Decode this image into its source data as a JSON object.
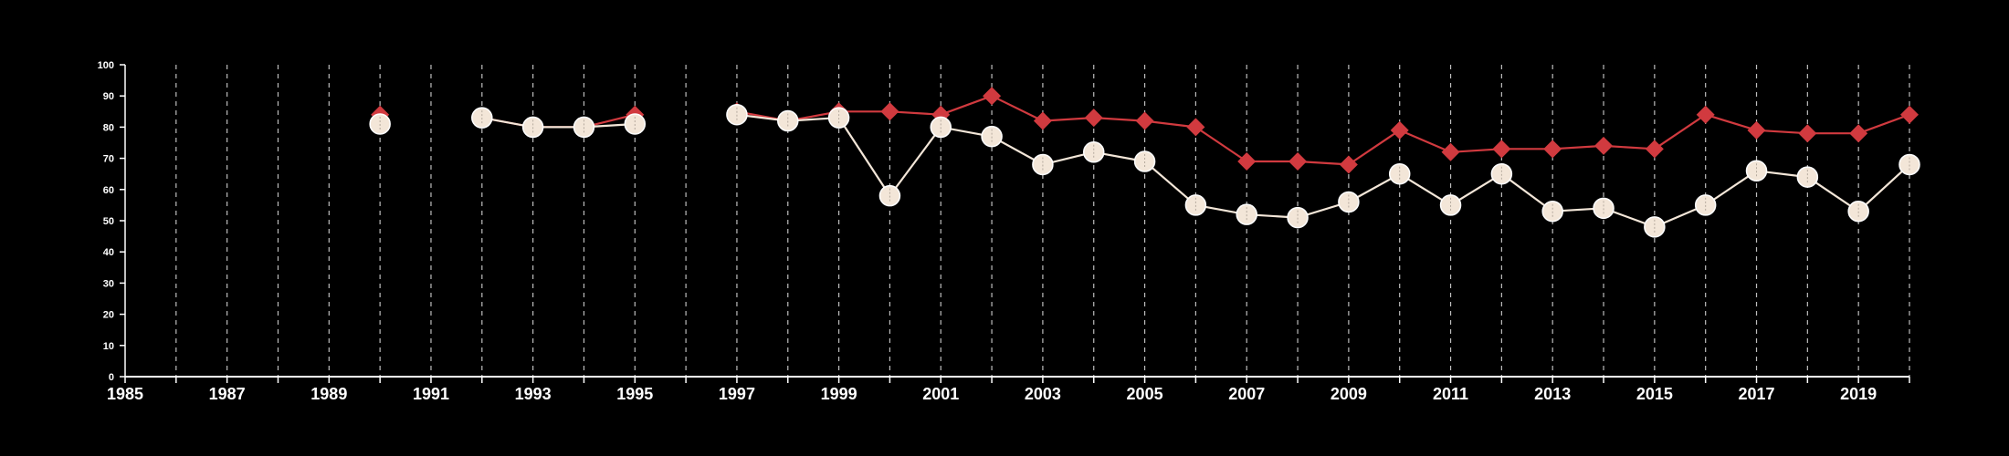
{
  "chart_data": {
    "type": "line",
    "title": "",
    "xlabel": "",
    "ylabel": "",
    "xlim": [
      1985,
      2020
    ],
    "ylim": [
      0,
      100
    ],
    "x_ticks": [
      "1985",
      "1987",
      "1989",
      "1991",
      "1993",
      "1995",
      "1997",
      "1999",
      "2001",
      "2003",
      "2005",
      "2007",
      "2009",
      "2011",
      "2013",
      "2015",
      "2017",
      "2019"
    ],
    "y_ticks": [
      "0",
      "10",
      "20",
      "30",
      "40",
      "50",
      "60",
      "70",
      "80",
      "90",
      "100"
    ],
    "grid": {
      "vertical": true,
      "horizontal": false,
      "style": "dashed"
    },
    "background": "#000000",
    "series": [
      {
        "color": "#d13a3f",
        "marker": "diamond",
        "points": [
          {
            "x": 1990,
            "y": 84
          },
          null,
          {
            "x": 1992,
            "y": 83
          },
          {
            "x": 1993,
            "y": 80
          },
          {
            "x": 1994,
            "y": 80
          },
          {
            "x": 1995,
            "y": 84
          },
          null,
          {
            "x": 1997,
            "y": 85
          },
          {
            "x": 1998,
            "y": 82
          },
          {
            "x": 1999,
            "y": 85
          },
          {
            "x": 2000,
            "y": 85
          },
          {
            "x": 2001,
            "y": 84
          },
          {
            "x": 2002,
            "y": 90
          },
          {
            "x": 2003,
            "y": 82
          },
          {
            "x": 2004,
            "y": 83
          },
          {
            "x": 2005,
            "y": 82
          },
          {
            "x": 2006,
            "y": 80
          },
          {
            "x": 2007,
            "y": 69
          },
          {
            "x": 2008,
            "y": 69
          },
          {
            "x": 2009,
            "y": 68
          },
          {
            "x": 2010,
            "y": 79
          },
          {
            "x": 2011,
            "y": 72
          },
          {
            "x": 2012,
            "y": 73
          },
          {
            "x": 2013,
            "y": 73
          },
          {
            "x": 2014,
            "y": 74
          },
          {
            "x": 2015,
            "y": 73
          },
          {
            "x": 2016,
            "y": 84
          },
          {
            "x": 2017,
            "y": 79
          },
          {
            "x": 2018,
            "y": 78
          },
          {
            "x": 2019,
            "y": 78
          },
          {
            "x": 2020,
            "y": 84
          }
        ]
      },
      {
        "color": "#f3e6d8",
        "marker": "circle",
        "points": [
          {
            "x": 1990,
            "y": 81
          },
          null,
          {
            "x": 1992,
            "y": 83
          },
          {
            "x": 1993,
            "y": 80
          },
          {
            "x": 1994,
            "y": 80
          },
          {
            "x": 1995,
            "y": 81
          },
          null,
          {
            "x": 1997,
            "y": 84
          },
          {
            "x": 1998,
            "y": 82
          },
          {
            "x": 1999,
            "y": 83
          },
          {
            "x": 2000,
            "y": 58
          },
          {
            "x": 2001,
            "y": 80
          },
          {
            "x": 2002,
            "y": 77
          },
          {
            "x": 2003,
            "y": 68
          },
          {
            "x": 2004,
            "y": 72
          },
          {
            "x": 2005,
            "y": 69
          },
          {
            "x": 2006,
            "y": 55
          },
          {
            "x": 2007,
            "y": 52
          },
          {
            "x": 2008,
            "y": 51
          },
          {
            "x": 2009,
            "y": 56
          },
          {
            "x": 2010,
            "y": 65
          },
          {
            "x": 2011,
            "y": 55
          },
          {
            "x": 2012,
            "y": 65
          },
          {
            "x": 2013,
            "y": 53
          },
          {
            "x": 2014,
            "y": 54
          },
          {
            "x": 2015,
            "y": 48
          },
          {
            "x": 2016,
            "y": 55
          },
          {
            "x": 2017,
            "y": 66
          },
          {
            "x": 2018,
            "y": 64
          },
          {
            "x": 2019,
            "y": 53
          },
          {
            "x": 2020,
            "y": 68
          }
        ]
      }
    ]
  }
}
